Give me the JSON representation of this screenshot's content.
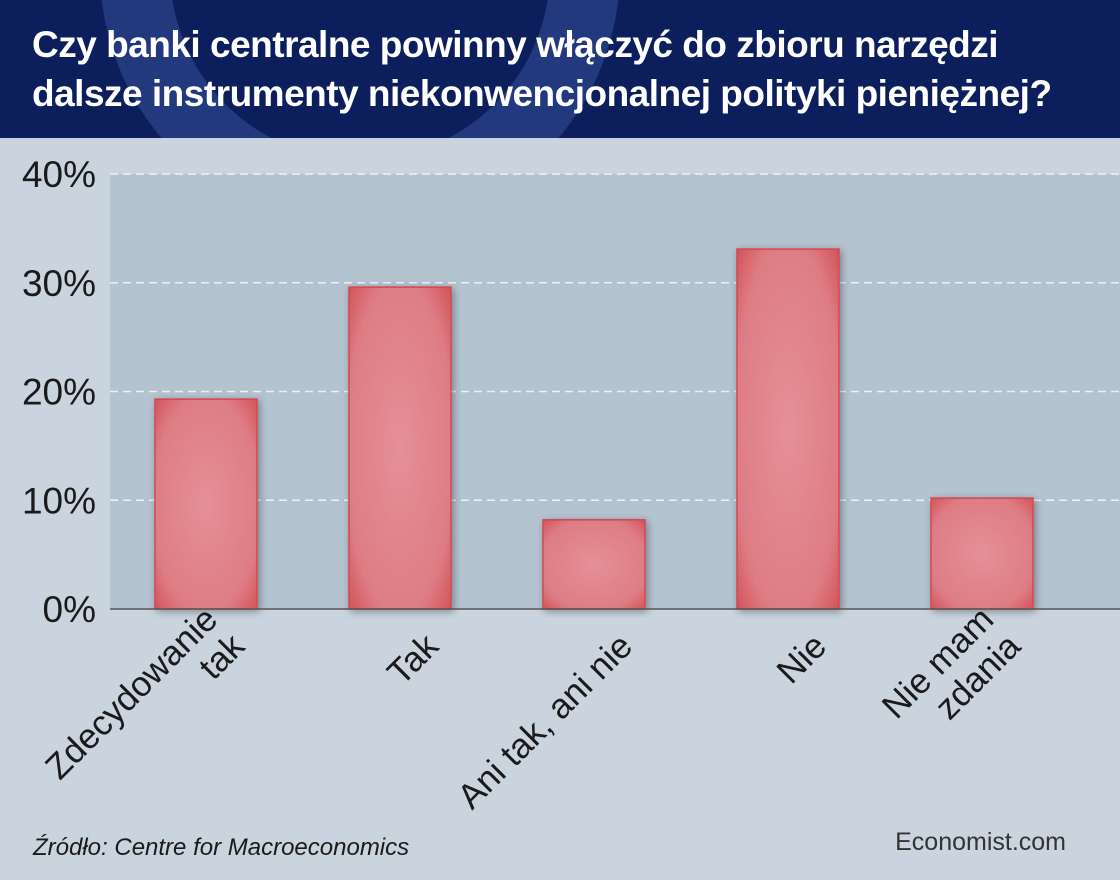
{
  "title": "Czy banki centralne powinny włączyć do zbioru narzędzi dalsze instrumenty niekonwencjonalnej polityki pieniężnej?",
  "source": "Źródło: Centre for Macroeconomics",
  "brand": "Economist.com",
  "colors": {
    "header_bg": "#0c1e5c",
    "page_bg": "#c9d4de",
    "plot_bg": "#b4c3d0",
    "bar_fill": "#df8088",
    "bar_edge": "#d2484e"
  },
  "chart_data": {
    "type": "bar",
    "title": "Czy banki centralne powinny włączyć do zbioru narzędzi dalsze instrumenty niekonwencjonalnej polityki pieniężnej?",
    "categories": [
      "Zdecydowanie tak",
      "Tak",
      "Ani tak, ani nie",
      "Nie",
      "Nie mam zdania"
    ],
    "category_lines": [
      [
        "Zdecydowanie",
        "tak"
      ],
      [
        "Tak"
      ],
      [
        "Ani tak, ani nie"
      ],
      [
        "Nie"
      ],
      [
        "Nie mam",
        "zdania"
      ]
    ],
    "values": [
      19.3,
      29.6,
      8.2,
      33.1,
      10.2
    ],
    "unit": "%",
    "ylim": [
      0,
      40
    ],
    "yticks": [
      0,
      10,
      20,
      30,
      40
    ],
    "ytick_labels": [
      "0%",
      "10%",
      "20%",
      "30%",
      "40%"
    ],
    "xlabel": "",
    "ylabel": "",
    "grid": true,
    "legend": "none"
  }
}
